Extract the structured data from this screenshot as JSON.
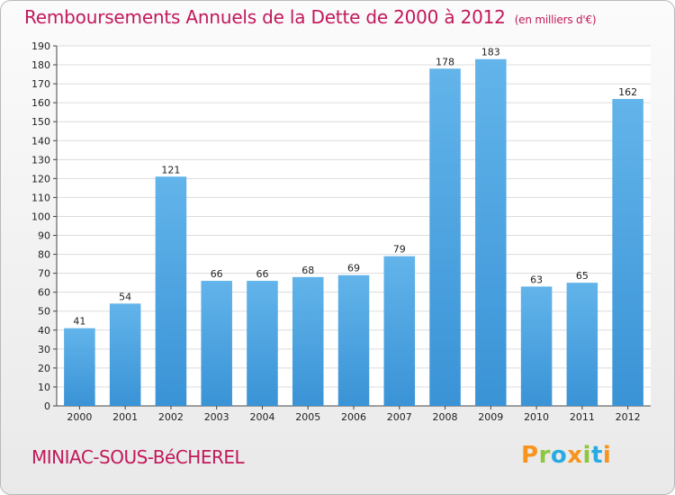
{
  "title": "Remboursements Annuels de la Dette de 2000 à 2012",
  "unit_note": "(en milliers d'€)",
  "commune": "MINIAC-SOUS-BéCHEREL",
  "logo": {
    "letters": [
      "P",
      "r",
      "o",
      "x",
      "i",
      "t",
      "i"
    ],
    "colors": [
      "#f7941d",
      "#8dc63f",
      "#29abe2",
      "#f7941d",
      "#8dc63f",
      "#29abe2",
      "#f7941d"
    ]
  },
  "colors": {
    "bar": "#3a93d6",
    "bar_light": "#62b4ea",
    "accent": "#c2185b"
  },
  "chart_data": {
    "type": "bar",
    "categories": [
      "2000",
      "2001",
      "2002",
      "2003",
      "2004",
      "2005",
      "2006",
      "2007",
      "2008",
      "2009",
      "2010",
      "2011",
      "2012"
    ],
    "values": [
      41,
      54,
      121,
      66,
      66,
      68,
      69,
      79,
      178,
      183,
      63,
      65,
      162
    ],
    "ylim": [
      0,
      190
    ],
    "yticks": [
      0,
      10,
      20,
      30,
      40,
      50,
      60,
      70,
      80,
      90,
      100,
      110,
      120,
      130,
      140,
      150,
      160,
      170,
      180,
      190
    ],
    "grid": true,
    "xlabel": "",
    "ylabel": ""
  }
}
